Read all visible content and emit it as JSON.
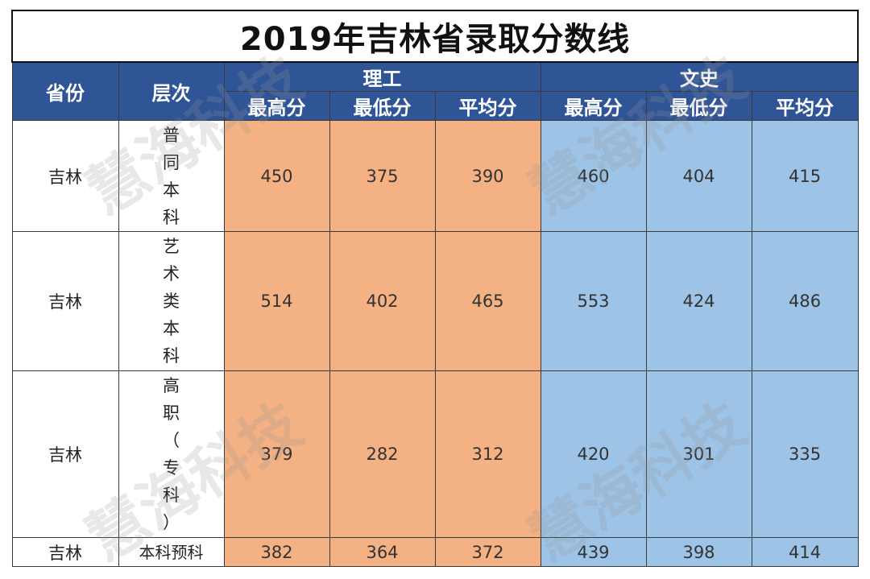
{
  "title": "2019年吉林省录取分数线",
  "headers": {
    "province": "省份",
    "level": "层次",
    "group_science": "理工",
    "group_arts": "文史",
    "max": "最高分",
    "min": "最低分",
    "avg": "平均分"
  },
  "rows": [
    {
      "province": "吉林",
      "level_chars": [
        "普",
        "同",
        "本",
        "科"
      ],
      "science": [
        "450",
        "375",
        "390"
      ],
      "arts": [
        "460",
        "404",
        "415"
      ]
    },
    {
      "province": "吉林",
      "level_chars": [
        "艺",
        "术",
        "类",
        "本",
        "科"
      ],
      "science": [
        "514",
        "402",
        "465"
      ],
      "arts": [
        "553",
        "424",
        "486"
      ]
    },
    {
      "province": "吉林",
      "level_chars": [
        "高",
        "职",
        "（",
        "专",
        "科",
        "）"
      ],
      "science": [
        "379",
        "282",
        "312"
      ],
      "arts": [
        "420",
        "301",
        "335"
      ]
    },
    {
      "province": "吉林",
      "level": "本科预科",
      "science": [
        "382",
        "364",
        "372"
      ],
      "arts": [
        "439",
        "398",
        "414"
      ]
    }
  ],
  "watermark": "慧海科技",
  "colors": {
    "header": "#2f5597",
    "science": "#f4b183",
    "arts": "#9dc3e6"
  }
}
